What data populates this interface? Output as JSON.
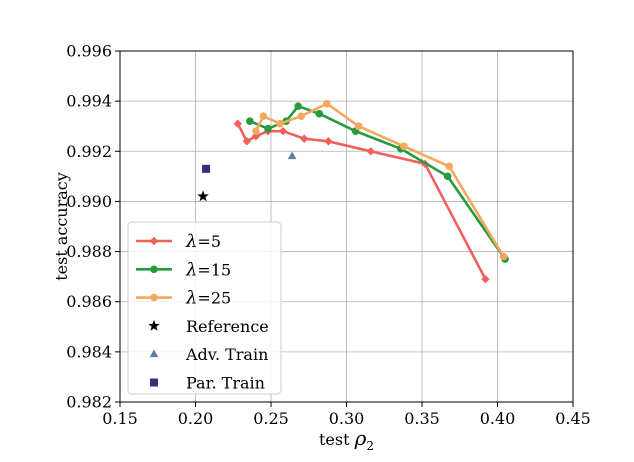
{
  "chart_data": {
    "type": "line",
    "xlabel_text": "test ",
    "xlabel_symbol": "ρ",
    "xlabel_sub": "2",
    "ylabel": "test accuracy",
    "xlim": [
      0.15,
      0.45
    ],
    "ylim": [
      0.982,
      0.996
    ],
    "xticks": [
      "0.15",
      "0.20",
      "0.25",
      "0.30",
      "0.35",
      "0.40",
      "0.45"
    ],
    "yticks": [
      "0.982",
      "0.984",
      "0.986",
      "0.988",
      "0.990",
      "0.992",
      "0.994",
      "0.996"
    ],
    "grid": true,
    "legend_position": "lower-left",
    "series": [
      {
        "name": "λ=5",
        "symbol": "λ",
        "value_label": "=5",
        "color": "#f0605d",
        "marker": "diamond",
        "points": [
          [
            0.228,
            0.9931
          ],
          [
            0.234,
            0.9924
          ],
          [
            0.24,
            0.9926
          ],
          [
            0.248,
            0.9928
          ],
          [
            0.258,
            0.9928
          ],
          [
            0.272,
            0.9925
          ],
          [
            0.288,
            0.9924
          ],
          [
            0.316,
            0.992
          ],
          [
            0.352,
            0.9915
          ],
          [
            0.392,
            0.9869
          ]
        ]
      },
      {
        "name": "λ=15",
        "symbol": "λ",
        "value_label": "=15",
        "color": "#279c3f",
        "marker": "circle",
        "points": [
          [
            0.236,
            0.9932
          ],
          [
            0.248,
            0.9929
          ],
          [
            0.26,
            0.9932
          ],
          [
            0.268,
            0.9938
          ],
          [
            0.282,
            0.9935
          ],
          [
            0.306,
            0.9928
          ],
          [
            0.336,
            0.9921
          ],
          [
            0.367,
            0.991
          ],
          [
            0.405,
            0.9877
          ]
        ]
      },
      {
        "name": "λ=25",
        "symbol": "λ",
        "value_label": "=25",
        "color": "#f2a85f",
        "marker": "circle",
        "points": [
          [
            0.24,
            0.9928
          ],
          [
            0.245,
            0.9934
          ],
          [
            0.256,
            0.9931
          ],
          [
            0.27,
            0.9934
          ],
          [
            0.287,
            0.9939
          ],
          [
            0.308,
            0.993
          ],
          [
            0.338,
            0.9922
          ],
          [
            0.368,
            0.9914
          ],
          [
            0.404,
            0.9878
          ]
        ]
      }
    ],
    "points": [
      {
        "name": "Reference",
        "color": "#000000",
        "marker": "star",
        "x": 0.205,
        "y": 0.9902
      },
      {
        "name": "Adv. Train",
        "color": "#5e7fa6",
        "marker": "triangle",
        "x": 0.264,
        "y": 0.9918
      },
      {
        "name": "Par. Train",
        "color": "#3a2a7a",
        "marker": "square",
        "x": 0.207,
        "y": 0.9913
      }
    ]
  }
}
